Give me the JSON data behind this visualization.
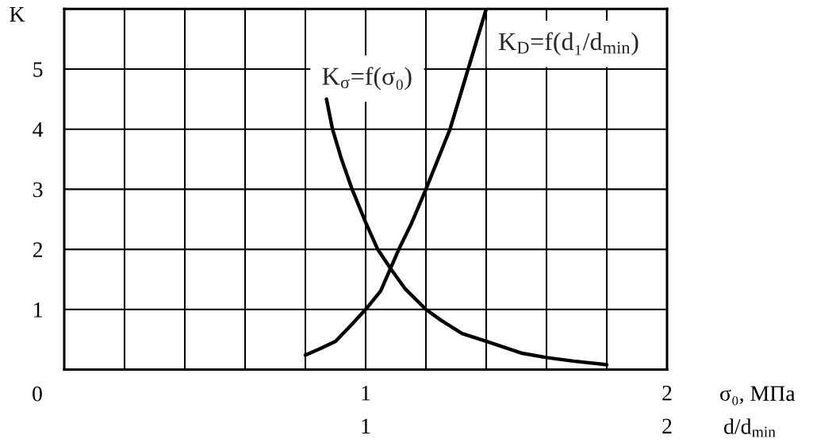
{
  "chart_data": {
    "type": "line",
    "xlabel": "σ₀, МПа",
    "ylabel": "K",
    "x2label": "d/d$_{min}$",
    "xlim": [
      0,
      2
    ],
    "xticks": [
      {
        "value": 0.2,
        "label": null
      },
      {
        "value": 0.4,
        "label": null
      },
      {
        "value": 0.6,
        "label": null
      },
      {
        "value": 0.8,
        "label": null
      },
      1,
      {
        "value": 1.2,
        "label": null
      },
      {
        "value": 1.4,
        "label": null
      },
      {
        "value": 1.6,
        "label": null
      },
      {
        "value": 1.8,
        "label": null
      },
      2
    ],
    "x2lim": [
      0,
      2
    ],
    "x2ticks": [
      1,
      2
    ],
    "ylim": [
      0,
      6
    ],
    "yticks": [
      1,
      2,
      3,
      4,
      5
    ],
    "grid": true,
    "annotations": [
      "0"
    ],
    "series": [
      {
        "name": "K$_{σ}$=f(σ₀)",
        "color": "#000000",
        "x": [
          0.87,
          0.89,
          0.92,
          0.955,
          1.0,
          1.04,
          1.08,
          1.13,
          1.2,
          1.25,
          1.32,
          1.4,
          1.52,
          1.6,
          1.69,
          1.8
        ],
        "values": [
          4.5,
          4.0,
          3.5,
          3.0,
          2.45,
          2.0,
          1.7,
          1.35,
          1.0,
          0.82,
          0.6,
          0.47,
          0.27,
          0.2,
          0.14,
          0.08
        ]
      },
      {
        "name": "K$_{D}$=f(d₁/d$_{min}$)",
        "color": "#000000",
        "x": [
          0.8,
          0.85,
          0.9,
          0.95,
          1.0,
          1.05,
          1.11,
          1.15,
          1.2,
          1.28,
          1.31,
          1.34,
          1.4
        ],
        "values": [
          0.24,
          0.35,
          0.47,
          0.73,
          1.0,
          1.31,
          2.0,
          2.41,
          3.0,
          4.0,
          4.5,
          5.0,
          6.0
        ]
      }
    ]
  }
}
